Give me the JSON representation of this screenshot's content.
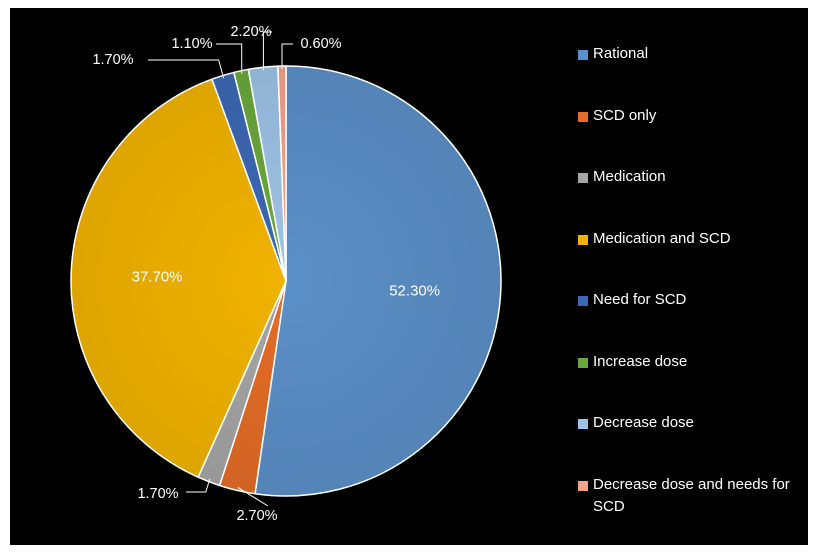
{
  "chart_data": {
    "type": "pie",
    "title": "",
    "categories": [
      "Rational",
      "SCD only",
      "Medication",
      "Medication and SCD",
      "Need for SCD",
      "Increase dose",
      "Decrease dose",
      "Decrease dose and needs for SCD"
    ],
    "values": [
      52.3,
      2.7,
      1.7,
      37.7,
      1.7,
      1.1,
      2.2,
      0.6
    ],
    "data_labels": [
      "52.30%",
      "2.70%",
      "1.70%",
      "37.70%",
      "1.70%",
      "1.10%",
      "2.20%",
      "0.60%"
    ],
    "colors": [
      "#5b8fc7",
      "#e46c26",
      "#a5a5a5",
      "#f1b300",
      "#3c68b4",
      "#6aa83c",
      "#9dc3e6",
      "#f4a28c"
    ],
    "legend_position": "right",
    "background": "#000000"
  }
}
